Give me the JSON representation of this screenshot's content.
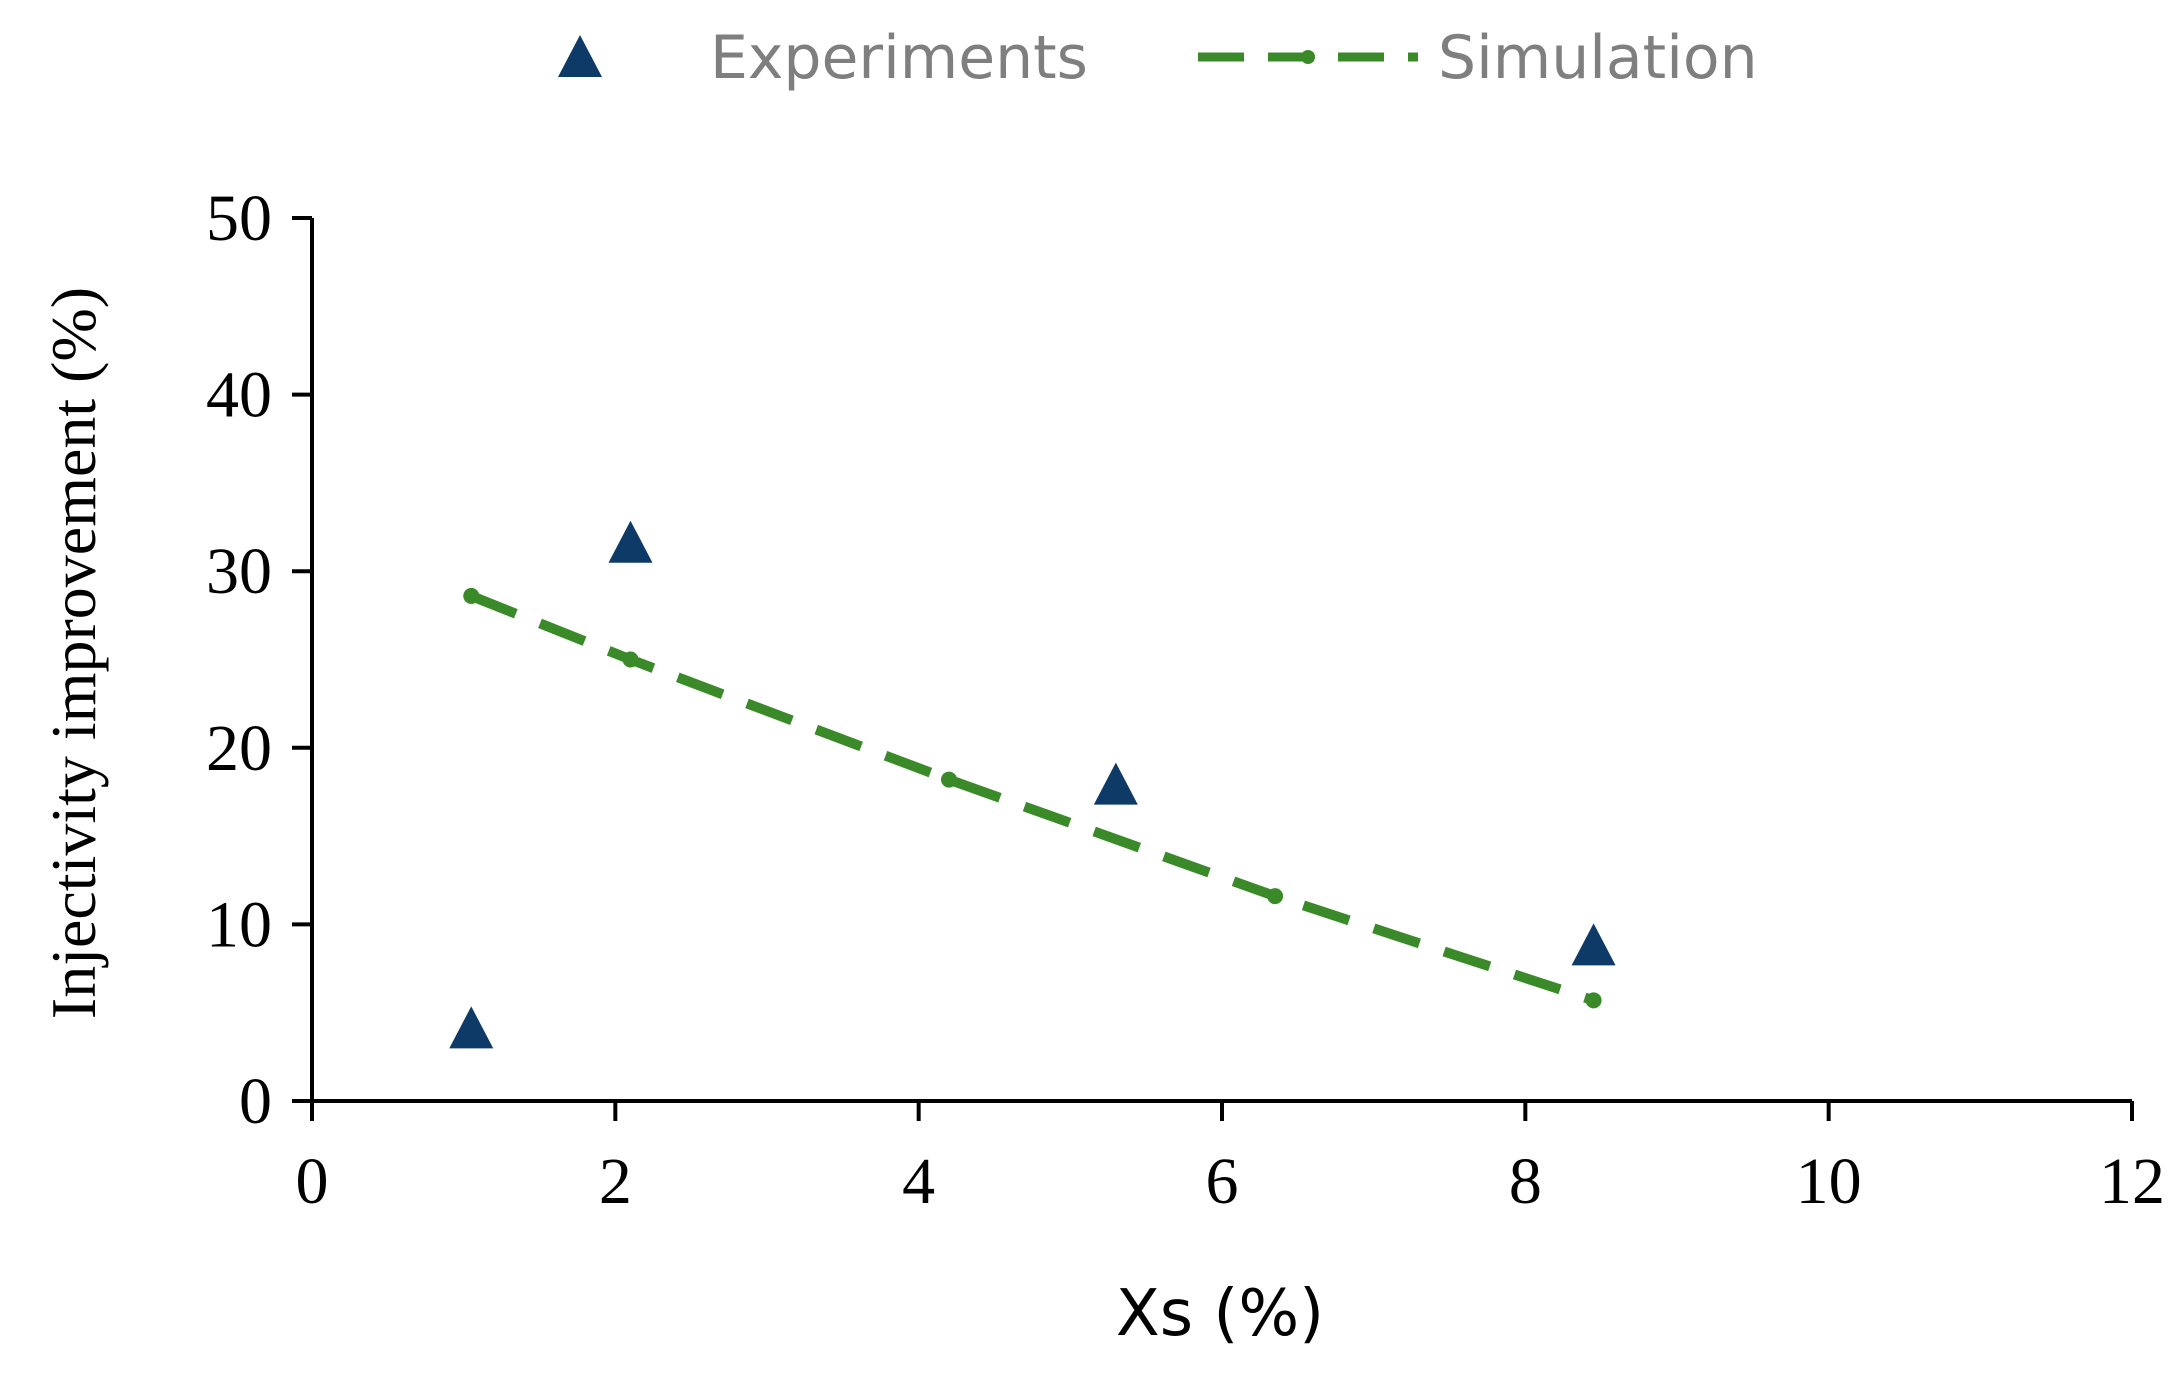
{
  "chart_data": {
    "type": "scatter",
    "xlabel": "Xs (%)",
    "ylabel": "Injectivity improvement (%)",
    "xlim": [
      0,
      12
    ],
    "ylim": [
      0,
      50
    ],
    "x_ticks": [
      0,
      2,
      4,
      6,
      8,
      10,
      12
    ],
    "y_ticks": [
      0,
      10,
      20,
      30,
      40,
      50
    ],
    "x_tick_labels": [
      "0",
      "2",
      "4",
      "6",
      "8",
      "10",
      "12"
    ],
    "y_tick_labels": [
      "0",
      "10",
      "20",
      "30",
      "40",
      "50"
    ],
    "grid": false,
    "legend_position": "top",
    "series": [
      {
        "name": "Experiments",
        "marker": "triangle",
        "color": "#0d3a66",
        "x": [
          1.05,
          2.1,
          5.3,
          8.45
        ],
        "y": [
          4.0,
          31.5,
          17.8,
          8.7
        ]
      },
      {
        "name": "Simulation",
        "marker": "dashed-line-dot",
        "color": "#3a8a2a",
        "x": [
          1.05,
          2.1,
          4.2,
          6.35,
          8.45
        ],
        "y": [
          28.6,
          25.0,
          18.2,
          11.6,
          5.7
        ]
      }
    ]
  }
}
